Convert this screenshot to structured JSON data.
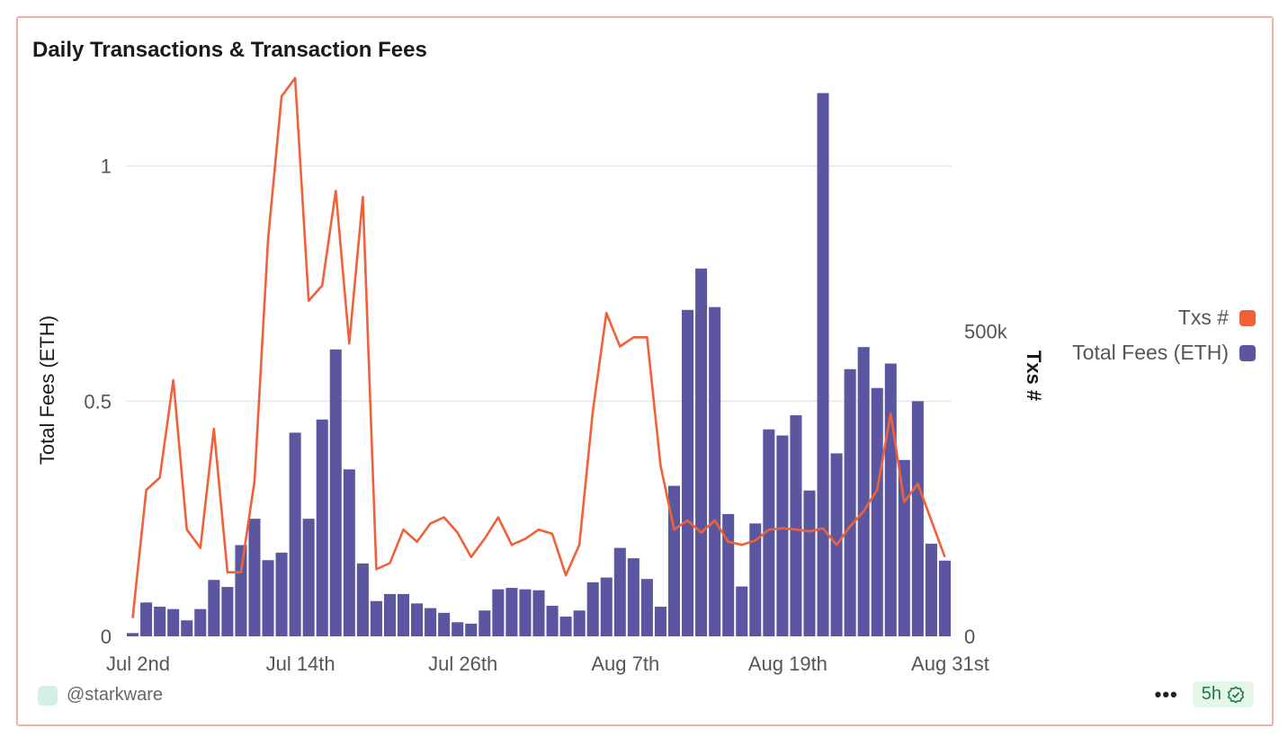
{
  "card": {
    "title": "Daily Transactions & Transaction Fees",
    "user": "@starkware",
    "more": "•••",
    "refresh_badge": "5h"
  },
  "colors": {
    "fees_bar": "#5a57a0",
    "txs_line": "#f0613a",
    "grid": "#e6e6e6",
    "card_border": "#f3b1a6"
  },
  "chart_data": {
    "type": "bar",
    "title": "Daily Transactions & Transaction Fees",
    "xtick_labels": [
      "Jul 2nd",
      "Jul 14th",
      "Jul 26th",
      "Aug 7th",
      "Aug 19th",
      "Aug 31st"
    ],
    "y_left": {
      "label": "Total Fees (ETH)",
      "ticks": [
        "0",
        "0.5",
        "1"
      ],
      "range": [
        0,
        1.2
      ]
    },
    "y_right": {
      "label": "Txs #",
      "ticks": [
        "0",
        "500k"
      ],
      "range": [
        0,
        925000
      ]
    },
    "legend": [
      "Txs #",
      "Total Fees (ETH)"
    ],
    "legend_position": "right",
    "grid": true,
    "series": [
      {
        "name": "Total Fees (ETH)",
        "type": "bar",
        "axis": "left",
        "values": [
          0.007,
          0.072,
          0.063,
          0.058,
          0.034,
          0.058,
          0.12,
          0.105,
          0.194,
          0.25,
          0.162,
          0.178,
          0.433,
          0.25,
          0.461,
          0.61,
          0.355,
          0.155,
          0.075,
          0.09,
          0.09,
          0.07,
          0.06,
          0.05,
          0.03,
          0.027,
          0.055,
          0.1,
          0.103,
          0.1,
          0.098,
          0.065,
          0.042,
          0.055,
          0.115,
          0.125,
          0.188,
          0.166,
          0.122,
          0.063,
          0.32,
          0.694,
          0.782,
          0.7,
          0.26,
          0.106,
          0.24,
          0.44,
          0.427,
          0.47,
          0.31,
          1.155,
          0.389,
          0.568,
          0.615,
          0.528,
          0.58,
          0.375,
          0.5,
          0.197,
          0.161
        ]
      },
      {
        "name": "Txs #",
        "type": "line",
        "axis": "right",
        "values": [
          30000,
          240000,
          260000,
          420000,
          175000,
          145000,
          340000,
          105000,
          105000,
          255000,
          650000,
          885000,
          915000,
          550000,
          575000,
          730000,
          480000,
          720000,
          110000,
          120000,
          175000,
          155000,
          185000,
          195000,
          170000,
          130000,
          160000,
          195000,
          150000,
          160000,
          175000,
          168000,
          100000,
          150000,
          370000,
          530000,
          475000,
          490000,
          490000,
          280000,
          175000,
          190000,
          170000,
          190000,
          155000,
          150000,
          157000,
          175000,
          177000,
          175000,
          172000,
          177000,
          150000,
          180000,
          205000,
          240000,
          365000,
          220000,
          250000,
          190000,
          130000
        ]
      }
    ]
  }
}
